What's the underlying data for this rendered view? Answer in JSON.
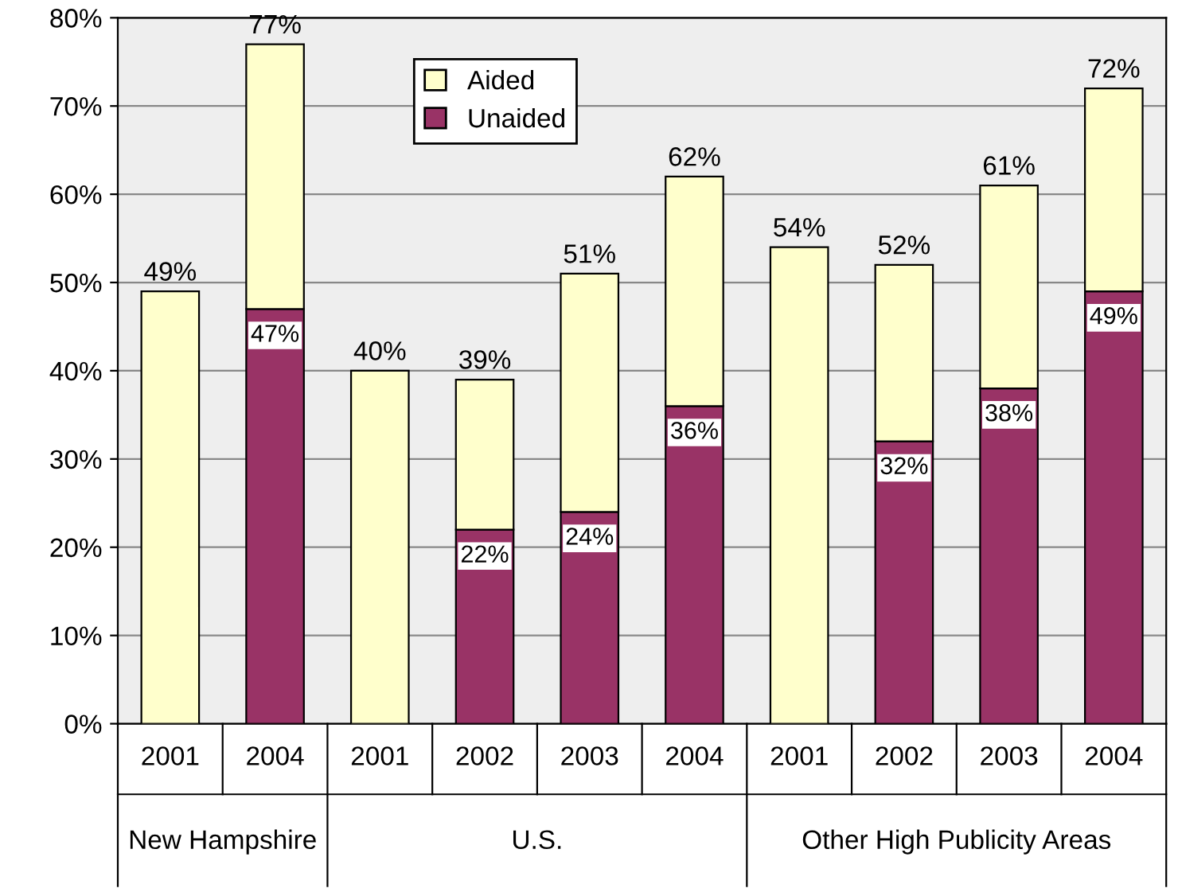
{
  "chart_data": {
    "type": "bar",
    "stacked": true,
    "categories": [
      "2001",
      "2004",
      "2001",
      "2002",
      "2003",
      "2004",
      "2001",
      "2002",
      "2003",
      "2004"
    ],
    "series": [
      {
        "name": "Unaided",
        "color": "#993366",
        "values": [
          0,
          47,
          0,
          22,
          24,
          36,
          0,
          32,
          38,
          49
        ],
        "value_labels": [
          null,
          "47%",
          null,
          "22%",
          "24%",
          "36%",
          null,
          "32%",
          "38%",
          "49%"
        ]
      },
      {
        "name": "Aided",
        "color": "#ffffcc",
        "values": [
          49,
          30,
          40,
          17,
          27,
          26,
          54,
          20,
          23,
          23
        ]
      }
    ],
    "totals": [
      "49%",
      "77%",
      "40%",
      "39%",
      "51%",
      "62%",
      "54%",
      "52%",
      "61%",
      "72%"
    ],
    "ylim": [
      0,
      80
    ],
    "yticks": [
      {
        "value": 0,
        "label": "0%"
      },
      {
        "value": 10,
        "label": "10%"
      },
      {
        "value": 20,
        "label": "20%"
      },
      {
        "value": 30,
        "label": "30%"
      },
      {
        "value": 40,
        "label": "40%"
      },
      {
        "value": 50,
        "label": "50%"
      },
      {
        "value": 60,
        "label": "60%"
      },
      {
        "value": 70,
        "label": "70%"
      },
      {
        "value": 80,
        "label": "80%"
      }
    ],
    "annotations": [
      "New Hampshire",
      "U.S.",
      "Other High Publicity Areas"
    ],
    "grid": "y",
    "legend": "top"
  }
}
